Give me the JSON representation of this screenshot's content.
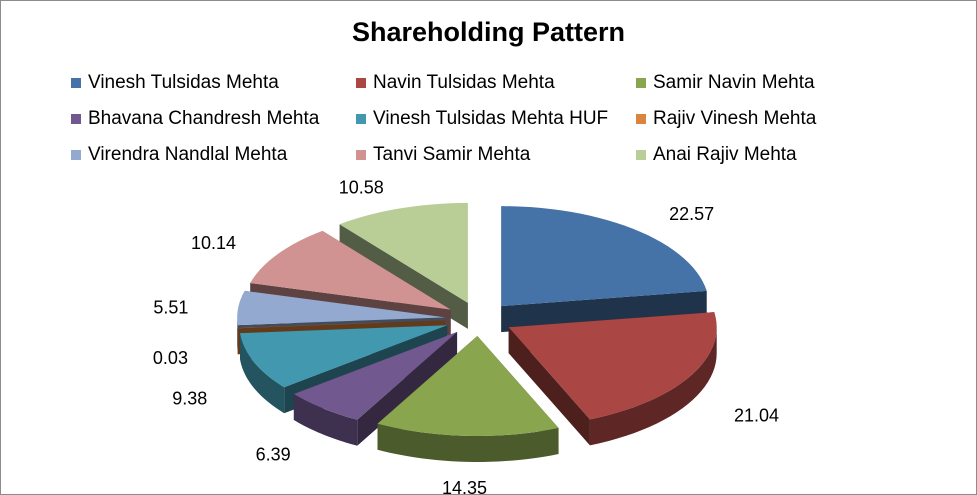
{
  "chart_data": {
    "type": "pie",
    "style": "3d-exploded",
    "title": "Shareholding Pattern",
    "legend_position": "top",
    "categories": [
      "Vinesh Tulsidas Mehta",
      "Navin Tulsidas Mehta",
      "Samir Navin Mehta",
      "Bhavana Chandresh Mehta",
      "Vinesh Tulsidas Mehta HUF",
      "Rajiv Vinesh Mehta",
      "Virendra Nandlal Mehta",
      "Tanvi Samir Mehta",
      "Anai Rajiv Mehta"
    ],
    "values": [
      22.57,
      21.04,
      14.35,
      6.39,
      9.38,
      0.03,
      5.51,
      10.14,
      10.58
    ],
    "data_labels": [
      "22.57",
      "21.04",
      "14.35",
      "6.39",
      "9.38",
      "0.03",
      "5.51",
      "10.14",
      "10.58"
    ],
    "colors": [
      "#4572A7",
      "#AA4643",
      "#89A54E",
      "#71588F",
      "#4198AF",
      "#DB843D",
      "#93A9CF",
      "#D19392",
      "#B9CD96"
    ]
  }
}
